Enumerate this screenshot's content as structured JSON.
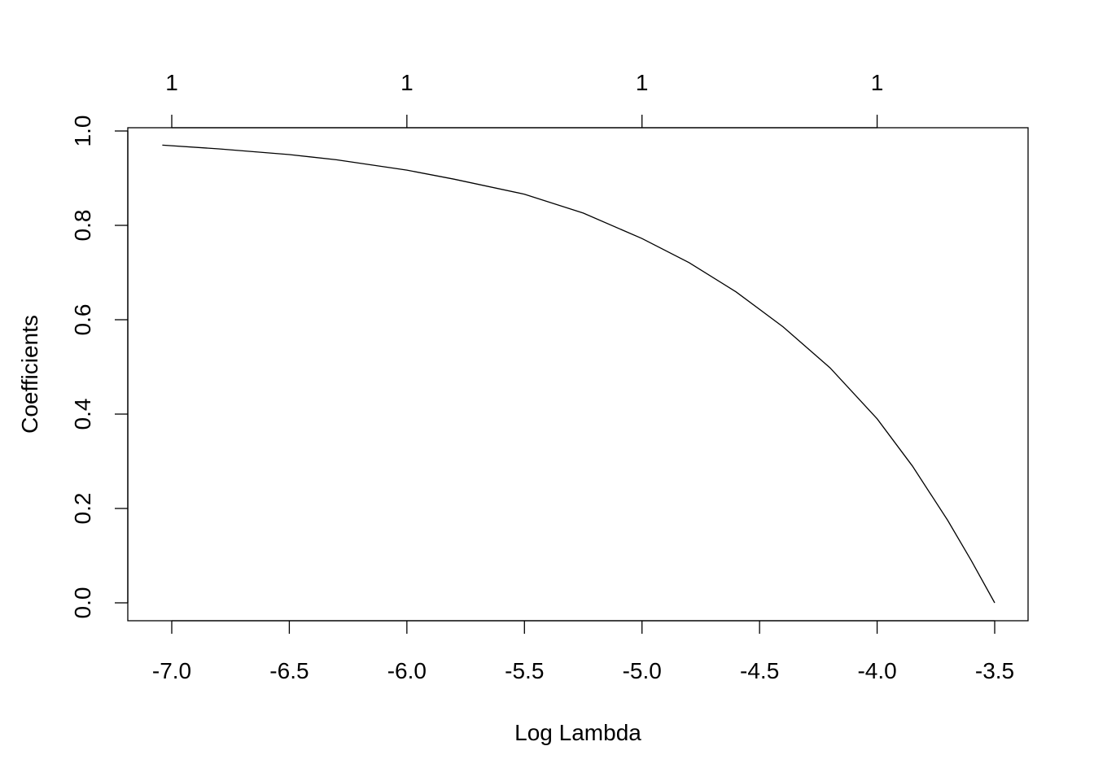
{
  "chart_data": {
    "type": "line",
    "title": "",
    "xlabel": "Log Lambda",
    "ylabel": "Coefficients",
    "xlim": [
      -7.04,
      -3.5
    ],
    "ylim": [
      0.0,
      0.97
    ],
    "x_ticks": [
      -7.0,
      -6.5,
      -6.0,
      -5.5,
      -5.0,
      -4.5,
      -4.0,
      -3.5
    ],
    "x_tick_labels": [
      "-7.0",
      "-6.5",
      "-6.0",
      "-5.5",
      "-5.0",
      "-4.5",
      "-4.0",
      "-3.5"
    ],
    "y_ticks": [
      0.0,
      0.2,
      0.4,
      0.6,
      0.8,
      1.0
    ],
    "y_tick_labels": [
      "0.0",
      "0.2",
      "0.4",
      "0.6",
      "0.8",
      "1.0"
    ],
    "top_axis": {
      "ticks": [
        -7.0,
        -6.0,
        -5.0,
        -4.0
      ],
      "labels": [
        "1",
        "1",
        "1",
        "1"
      ]
    },
    "grid": false,
    "legend": "none",
    "series": [
      {
        "color": "#000000",
        "x": [
          -7.04,
          -6.8,
          -6.5,
          -6.3,
          -6.0,
          -5.8,
          -5.5,
          -5.25,
          -5.0,
          -4.8,
          -4.6,
          -4.4,
          -4.2,
          -4.0,
          -3.85,
          -3.7,
          -3.6,
          -3.5
        ],
        "y": [
          0.97,
          0.962,
          0.95,
          0.939,
          0.917,
          0.898,
          0.866,
          0.826,
          0.772,
          0.721,
          0.659,
          0.585,
          0.498,
          0.39,
          0.29,
          0.175,
          0.09,
          0.0
        ]
      }
    ]
  }
}
